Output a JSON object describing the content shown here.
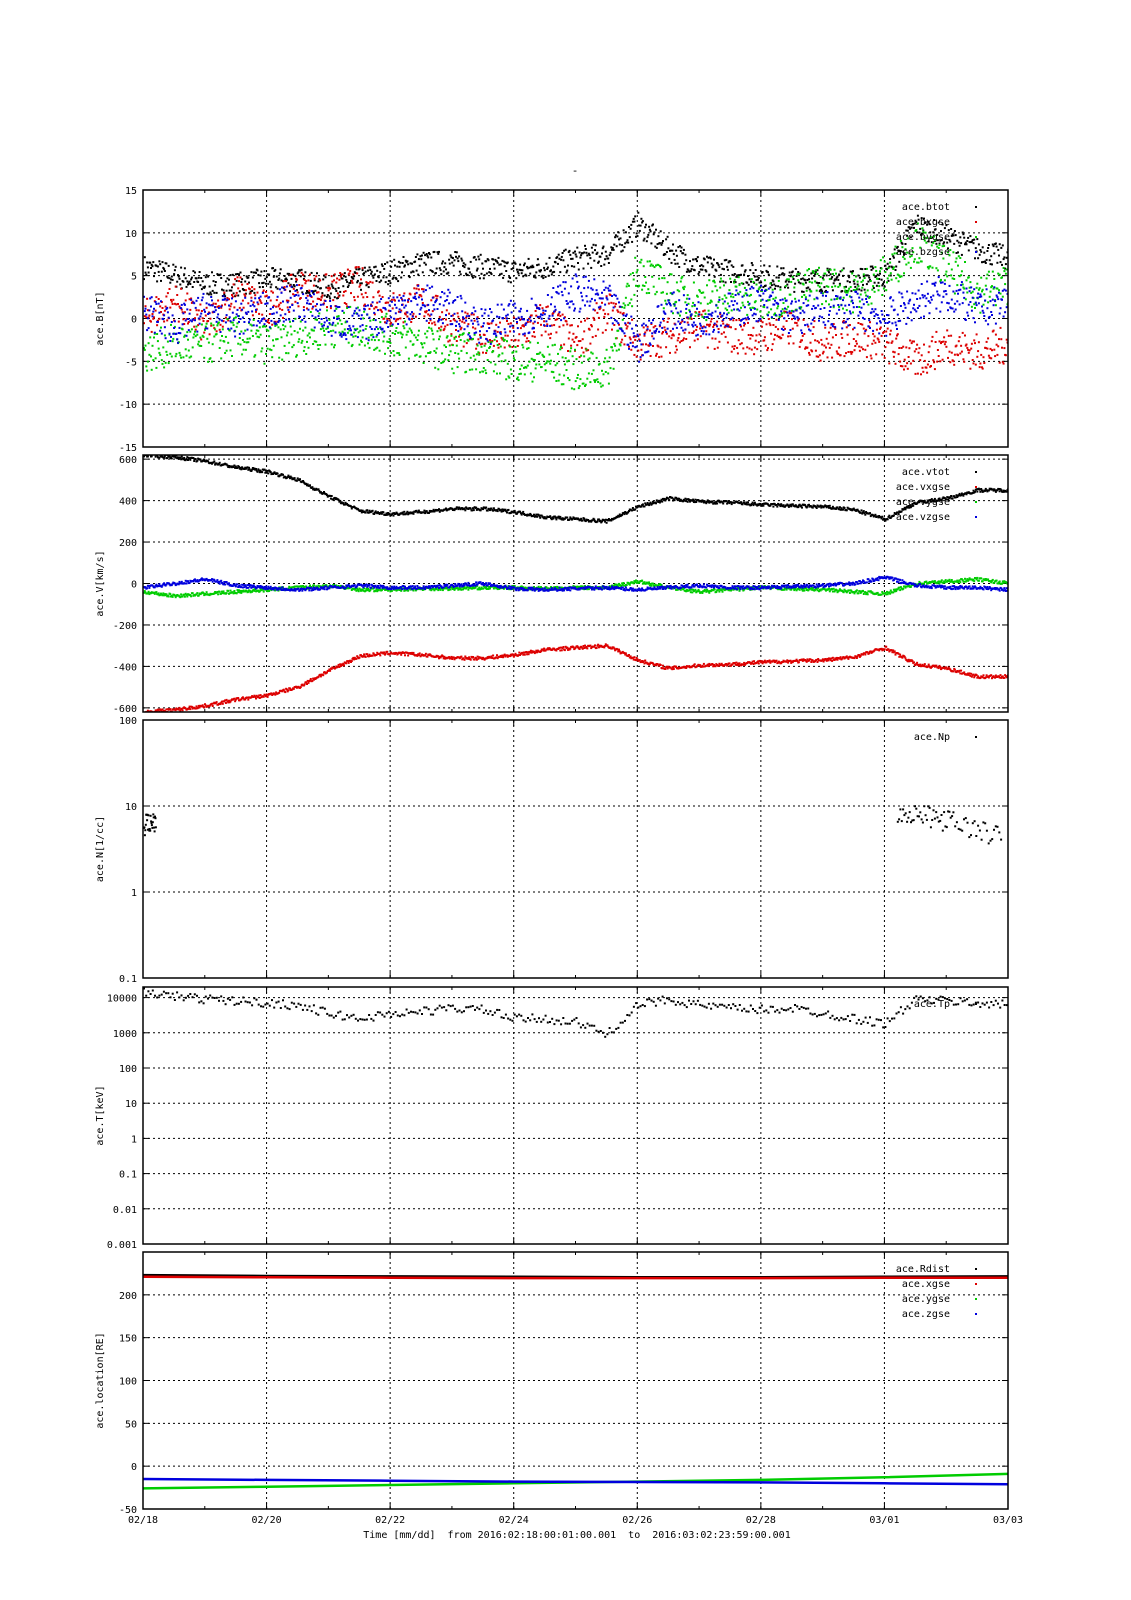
{
  "figure": {
    "title": "-",
    "xaxis_label": "Time [mm/dd]  from 2016:02:18:00:01:00.001  to  2016:03:02:23:59:00.001",
    "x_ticks": [
      "02/18",
      "02/20",
      "02/22",
      "02/24",
      "02/26",
      "02/28",
      "03/01",
      "03/03"
    ],
    "colors": {
      "black": "#000000",
      "red": "#dd0000",
      "green": "#00cc00",
      "blue": "#0000dd"
    }
  },
  "chart_data": [
    {
      "type": "scatter",
      "ylabel": "ace.B[nT]",
      "yscale": "linear",
      "ylim": [
        -15,
        15
      ],
      "yticks": [
        "15",
        "10",
        "5",
        "0",
        "-5",
        "-10",
        "-15"
      ],
      "ytick_values": [
        15,
        10,
        5,
        0,
        -5,
        -10,
        -15
      ],
      "legend": "top-right",
      "x": [
        "02/18",
        "02/18.5",
        "02/19",
        "02/19.5",
        "02/20",
        "02/20.5",
        "02/21",
        "02/21.5",
        "02/22",
        "02/22.5",
        "02/23",
        "02/23.5",
        "02/24",
        "02/24.5",
        "02/25",
        "02/25.5",
        "02/26",
        "02/26.5",
        "02/27",
        "02/27.5",
        "02/28",
        "02/28.5",
        "02/29",
        "02/29.5",
        "03/01",
        "03/01.5",
        "03/02",
        "03/02.5",
        "03/03"
      ],
      "series": [
        {
          "name": "ace.btot",
          "color": "black",
          "values": [
            6,
            5,
            4,
            4,
            4.5,
            4.5,
            3.5,
            4.5,
            5.5,
            6.5,
            6.5,
            6,
            5.5,
            6,
            7,
            7.5,
            11,
            8,
            6,
            5.5,
            5,
            4.5,
            4.5,
            4.5,
            5,
            11,
            9.5,
            8,
            7
          ]
        },
        {
          "name": "ace.bxgse",
          "color": "red",
          "values": [
            0,
            2,
            -1,
            3,
            1,
            3.5,
            3,
            4,
            1,
            2,
            -1,
            -2,
            -2,
            0,
            -3,
            1,
            -3,
            -2,
            -1,
            -2,
            -2,
            -1,
            -3,
            -2,
            -3,
            -5,
            -3,
            -4,
            -3
          ]
        },
        {
          "name": "ace.bygse",
          "color": "green",
          "values": [
            -4,
            -3,
            -3,
            -2,
            -3,
            -2,
            -1,
            -1,
            -2,
            -3,
            -4,
            -4,
            -5,
            -5,
            -6,
            -6,
            6,
            3,
            2,
            3,
            2,
            3,
            4,
            3,
            5,
            9,
            6,
            3,
            4
          ]
        },
        {
          "name": "ace.bzgse",
          "color": "blue",
          "values": [
            1,
            -1,
            1,
            0,
            1,
            2,
            0,
            -1,
            1,
            2,
            1,
            -1,
            0,
            1,
            3,
            2,
            -3,
            1,
            0,
            1,
            2,
            0,
            1,
            1,
            0,
            2,
            3,
            1,
            2
          ]
        }
      ]
    },
    {
      "type": "scatter",
      "ylabel": "ace.V[km/s]",
      "yscale": "linear",
      "ylim": [
        -620,
        620
      ],
      "yticks": [
        "600",
        "400",
        "200",
        "0",
        "-200",
        "-400",
        "-600"
      ],
      "ytick_values": [
        600,
        400,
        200,
        0,
        -200,
        -400,
        -600
      ],
      "legend": "top-right",
      "x": [
        "02/18",
        "02/18.5",
        "02/19",
        "02/19.5",
        "02/20",
        "02/20.5",
        "02/21",
        "02/21.5",
        "02/22",
        "02/22.5",
        "02/23",
        "02/23.5",
        "02/24",
        "02/24.5",
        "02/25",
        "02/25.5",
        "02/26",
        "02/26.5",
        "02/27",
        "02/27.5",
        "02/28",
        "02/28.5",
        "02/29",
        "02/29.5",
        "03/01",
        "03/01.5",
        "03/02",
        "03/02.5",
        "03/03"
      ],
      "series": [
        {
          "name": "ace.vtot",
          "color": "black",
          "values": [
            620,
            610,
            590,
            560,
            540,
            500,
            420,
            350,
            335,
            345,
            360,
            360,
            345,
            320,
            310,
            300,
            370,
            410,
            395,
            390,
            380,
            375,
            370,
            355,
            310,
            390,
            410,
            450,
            450
          ]
        },
        {
          "name": "ace.vxgse",
          "color": "red",
          "values": [
            -620,
            -610,
            -590,
            -560,
            -540,
            -500,
            -420,
            -350,
            -335,
            -345,
            -360,
            -360,
            -345,
            -320,
            -310,
            -300,
            -370,
            -410,
            -395,
            -390,
            -380,
            -375,
            -370,
            -355,
            -310,
            -390,
            -410,
            -450,
            -450
          ]
        },
        {
          "name": "ace.vygse",
          "color": "green",
          "values": [
            -40,
            -60,
            -50,
            -40,
            -30,
            -20,
            -10,
            -30,
            -30,
            -25,
            -25,
            -20,
            -20,
            -25,
            -20,
            -20,
            10,
            -20,
            -40,
            -30,
            -20,
            -25,
            -30,
            -40,
            -50,
            0,
            10,
            20,
            0
          ]
        },
        {
          "name": "ace.vzgse",
          "color": "blue",
          "values": [
            -20,
            0,
            20,
            -10,
            -20,
            -30,
            -20,
            -10,
            -20,
            -20,
            -10,
            0,
            -25,
            -30,
            -25,
            -20,
            -30,
            -20,
            -10,
            -20,
            -20,
            -15,
            -10,
            0,
            30,
            -10,
            -20,
            -20,
            -30
          ]
        }
      ]
    },
    {
      "type": "scatter",
      "ylabel": "ace.N[1/cc]",
      "yscale": "log",
      "ylim": [
        0.1,
        100
      ],
      "yticks": [
        "100",
        "10",
        "1",
        "0.1"
      ],
      "ytick_values": [
        100,
        10,
        1,
        0.1
      ],
      "legend": "top-right",
      "series": [
        {
          "name": "ace.Np",
          "color": "black",
          "x": [
            "02/18",
            "02/18.1",
            "02/18.2",
            "02/19.1",
            "03/01.2",
            "03/01.5",
            "03/01.8",
            "03/02.1",
            "03/02.5",
            "03/02.9"
          ],
          "values": [
            5.8,
            6.5,
            6.8,
            7.8,
            8.5,
            8.0,
            7.2,
            6.5,
            5.2,
            4.3
          ]
        }
      ]
    },
    {
      "type": "scatter",
      "ylabel": "ace.T[keV]",
      "yscale": "log",
      "ylim": [
        0.001,
        20000
      ],
      "yticks": [
        "10000",
        "1000",
        "100",
        "10",
        "1",
        "0.1",
        "0.01",
        "0.001"
      ],
      "ytick_values": [
        10000,
        1000,
        100,
        10,
        1,
        0.1,
        0.01,
        0.001
      ],
      "legend": "top-right",
      "x": [
        "02/18",
        "02/18.5",
        "02/19",
        "02/19.5",
        "02/20",
        "02/20.5",
        "02/21",
        "02/21.5",
        "02/22",
        "02/22.5",
        "02/23",
        "02/23.5",
        "02/24",
        "02/24.5",
        "02/25",
        "02/25.5",
        "02/26",
        "02/26.5",
        "02/27",
        "02/27.5",
        "02/28",
        "02/28.5",
        "02/29",
        "02/29.5",
        "03/01",
        "03/01.5",
        "03/02",
        "03/02.5",
        "03/03"
      ],
      "series": [
        {
          "name": "ace.Tp",
          "color": "black",
          "values": [
            14000,
            11000,
            9000,
            8000,
            7000,
            6000,
            3500,
            2500,
            3500,
            4000,
            5000,
            4500,
            2500,
            2500,
            2000,
            900,
            6000,
            9000,
            6000,
            5000,
            4500,
            5000,
            3500,
            2500,
            1800,
            9000,
            8000,
            7000,
            6000
          ]
        }
      ]
    },
    {
      "type": "line",
      "ylabel": "ace.location[RE]",
      "yscale": "linear",
      "ylim": [
        -50,
        250
      ],
      "yticks": [
        "200",
        "150",
        "100",
        "50",
        "0",
        "-50"
      ],
      "ytick_values": [
        200,
        150,
        100,
        50,
        0,
        -50
      ],
      "legend": "top-right",
      "x": [
        "02/18",
        "02/20",
        "02/22",
        "02/24",
        "02/26",
        "02/28",
        "03/01",
        "03/03"
      ],
      "series": [
        {
          "name": "ace.Rdist",
          "color": "black",
          "values": [
            223,
            222,
            221.5,
            221,
            220.5,
            220.5,
            221,
            221.5
          ]
        },
        {
          "name": "ace.xgse",
          "color": "red",
          "values": [
            221,
            220.5,
            220,
            219.5,
            219.5,
            219.5,
            220,
            220
          ]
        },
        {
          "name": "ace.ygse",
          "color": "green",
          "values": [
            -26,
            -24,
            -22,
            -20,
            -18,
            -16,
            -13,
            -9
          ]
        },
        {
          "name": "ace.zgse",
          "color": "blue",
          "values": [
            -15,
            -16,
            -17,
            -18,
            -18.5,
            -19,
            -20,
            -21
          ]
        }
      ]
    }
  ]
}
